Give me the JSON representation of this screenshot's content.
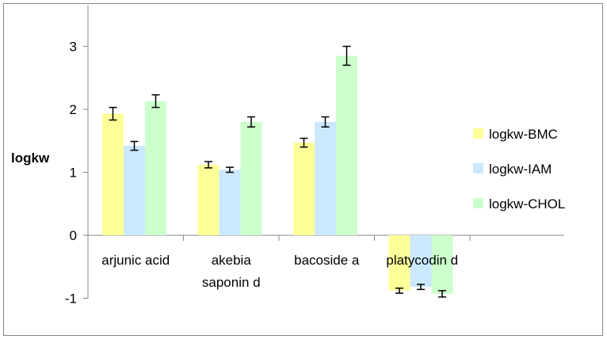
{
  "chart_data": {
    "type": "bar",
    "title": "",
    "xlabel": "",
    "ylabel": "logkw",
    "ylim": [
      -1,
      3.5
    ],
    "yticks": [
      "-1",
      "0",
      "1",
      "2",
      "3"
    ],
    "categories": [
      [
        "arjunic acid"
      ],
      [
        "akebia",
        "saponin d"
      ],
      [
        "bacoside a"
      ],
      [
        "platycodin d"
      ]
    ],
    "series": [
      {
        "name": "logkw-BMC",
        "color": "#ffff99",
        "values": [
          1.93,
          1.12,
          1.47,
          -0.88
        ],
        "errors": [
          0.1,
          0.05,
          0.07,
          0.04
        ]
      },
      {
        "name": "logkw-IAM",
        "color": "#cce8ff",
        "values": [
          1.42,
          1.04,
          1.8,
          -0.82
        ],
        "errors": [
          0.07,
          0.04,
          0.08,
          0.04
        ]
      },
      {
        "name": "logkw-CHOL",
        "color": "#ccffcc",
        "values": [
          2.13,
          1.8,
          2.85,
          -0.93
        ],
        "errors": [
          0.1,
          0.08,
          0.15,
          0.05
        ]
      }
    ],
    "legend_position": "right",
    "grid": false
  }
}
